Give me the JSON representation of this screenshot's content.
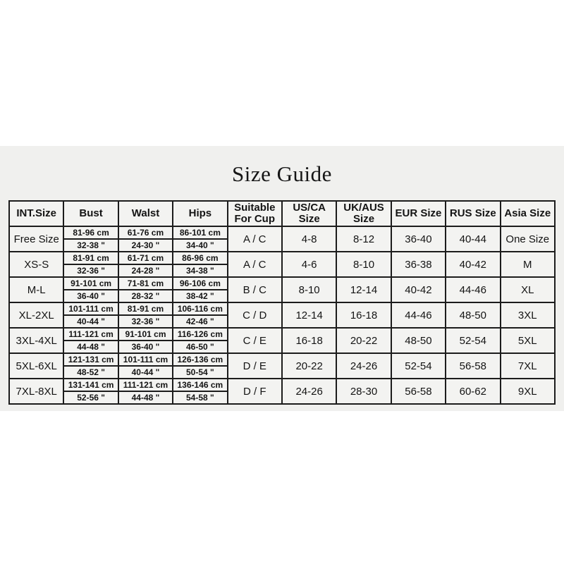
{
  "title": "Size Guide",
  "table": {
    "headers": [
      "INT.Size",
      "Bust",
      "Walst",
      "Hips",
      "Suitable For Cup",
      "US/CA Size",
      "UK/AUS Size",
      "EUR Size",
      "RUS Size",
      "Asia Size"
    ],
    "rows": [
      {
        "int_size": "Free Size",
        "bust_cm": "81-96 cm",
        "bust_in": "32-38 \"",
        "waist_cm": "61-76 cm",
        "waist_in": "24-30 \"",
        "hips_cm": "86-101 cm",
        "hips_in": "34-40 \"",
        "cup": "A / C",
        "us_ca": "4-8",
        "uk_aus": "8-12",
        "eur": "36-40",
        "rus": "40-44",
        "asia": "One Size"
      },
      {
        "int_size": "XS-S",
        "bust_cm": "81-91 cm",
        "bust_in": "32-36 \"",
        "waist_cm": "61-71 cm",
        "waist_in": "24-28 \"",
        "hips_cm": "86-96 cm",
        "hips_in": "34-38 \"",
        "cup": "A / C",
        "us_ca": "4-6",
        "uk_aus": "8-10",
        "eur": "36-38",
        "rus": "40-42",
        "asia": "M"
      },
      {
        "int_size": "M-L",
        "bust_cm": "91-101 cm",
        "bust_in": "36-40 \"",
        "waist_cm": "71-81 cm",
        "waist_in": "28-32 \"",
        "hips_cm": "96-106 cm",
        "hips_in": "38-42 \"",
        "cup": "B / C",
        "us_ca": "8-10",
        "uk_aus": "12-14",
        "eur": "40-42",
        "rus": "44-46",
        "asia": "XL"
      },
      {
        "int_size": "XL-2XL",
        "bust_cm": "101-111 cm",
        "bust_in": "40-44 \"",
        "waist_cm": "81-91 cm",
        "waist_in": "32-36 \"",
        "hips_cm": "106-116 cm",
        "hips_in": "42-46 \"",
        "cup": "C / D",
        "us_ca": "12-14",
        "uk_aus": "16-18",
        "eur": "44-46",
        "rus": "48-50",
        "asia": "3XL"
      },
      {
        "int_size": "3XL-4XL",
        "bust_cm": "111-121 cm",
        "bust_in": "44-48 \"",
        "waist_cm": "91-101 cm",
        "waist_in": "36-40 \"",
        "hips_cm": "116-126 cm",
        "hips_in": "46-50 \"",
        "cup": "C / E",
        "us_ca": "16-18",
        "uk_aus": "20-22",
        "eur": "48-50",
        "rus": "52-54",
        "asia": "5XL"
      },
      {
        "int_size": "5XL-6XL",
        "bust_cm": "121-131 cm",
        "bust_in": "48-52 \"",
        "waist_cm": "101-111 cm",
        "waist_in": "40-44 \"",
        "hips_cm": "126-136 cm",
        "hips_in": "50-54 \"",
        "cup": "D / E",
        "us_ca": "20-22",
        "uk_aus": "24-26",
        "eur": "52-54",
        "rus": "56-58",
        "asia": "7XL"
      },
      {
        "int_size": "7XL-8XL",
        "bust_cm": "131-141 cm",
        "bust_in": "52-56 \"",
        "waist_cm": "111-121 cm",
        "waist_in": "44-48 \"",
        "hips_cm": "136-146 cm",
        "hips_in": "54-58 \"",
        "cup": "D / F",
        "us_ca": "24-26",
        "uk_aus": "28-30",
        "eur": "56-58",
        "rus": "60-62",
        "asia": "9XL"
      }
    ]
  }
}
